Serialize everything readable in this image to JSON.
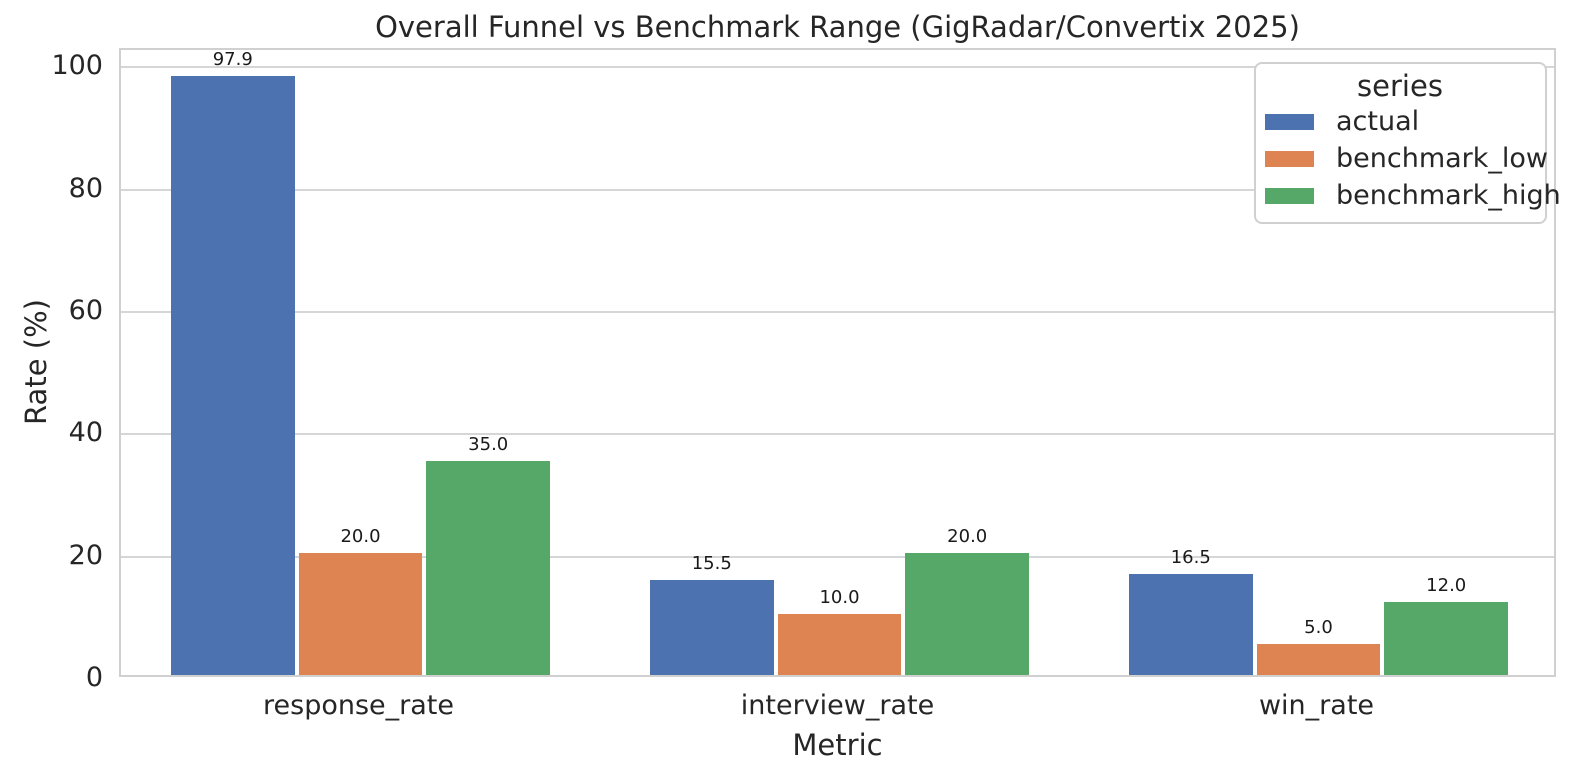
{
  "chart_data": {
    "type": "bar",
    "title": "Overall Funnel vs Benchmark Range (GigRadar/Convertix 2025)",
    "xlabel": "Metric",
    "ylabel": "Rate (%)",
    "categories": [
      "response_rate",
      "interview_rate",
      "win_rate"
    ],
    "series": [
      {
        "name": "actual",
        "color": "#4C72B0",
        "values": [
          97.9,
          15.5,
          16.5
        ],
        "labels": [
          "97.9",
          "15.5",
          "16.5"
        ]
      },
      {
        "name": "benchmark_low",
        "color": "#DD8452",
        "values": [
          20.0,
          10.0,
          5.0
        ],
        "labels": [
          "20.0",
          "10.0",
          "5.0"
        ]
      },
      {
        "name": "benchmark_high",
        "color": "#55A868",
        "values": [
          35.0,
          20.0,
          12.0
        ],
        "labels": [
          "35.0",
          "20.0",
          "12.0"
        ]
      }
    ],
    "yticks": [
      0,
      20,
      40,
      60,
      80,
      100
    ],
    "ytick_labels": [
      "0",
      "20",
      "40",
      "60",
      "80",
      "100"
    ],
    "ylim": [
      0,
      102.8
    ],
    "grid": true,
    "legend": {
      "title": "series",
      "position": "upper right",
      "entries": [
        "actual",
        "benchmark_low",
        "benchmark_high"
      ]
    },
    "style": {
      "text_color": "#262626",
      "grid_color": "#d6d6d6",
      "frame_color": "#d0d0d0",
      "background": "#ffffff"
    }
  }
}
